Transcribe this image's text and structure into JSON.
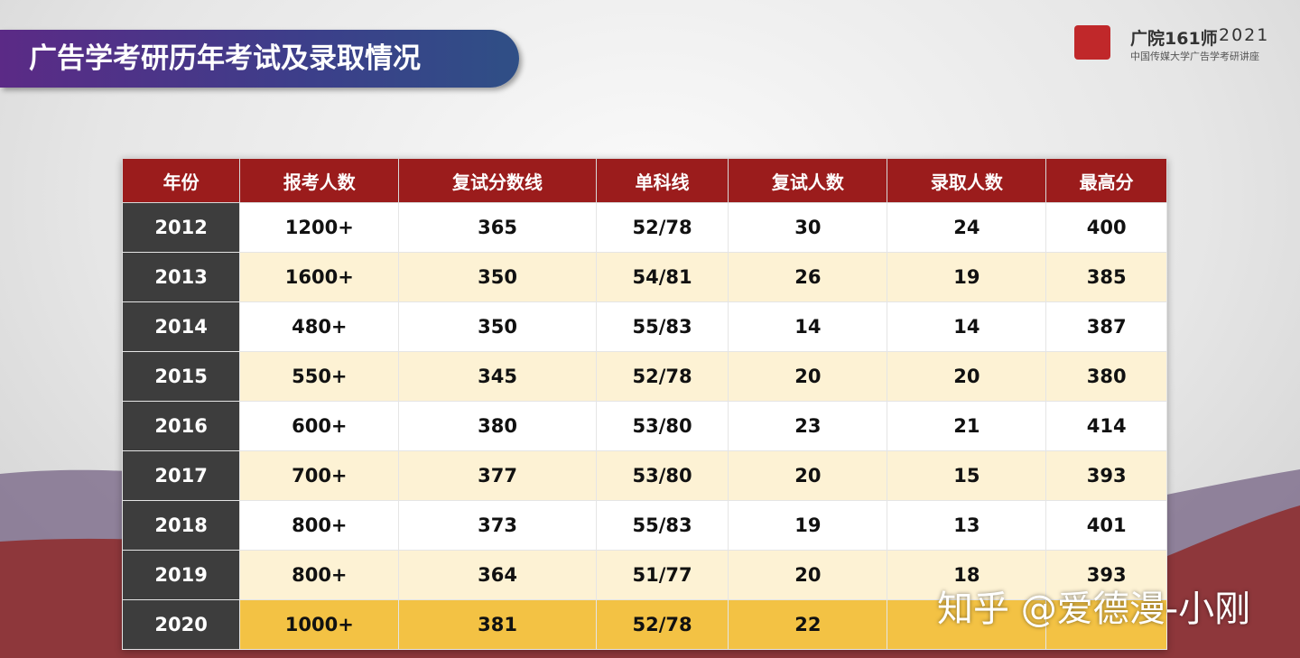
{
  "header": {
    "title": "广告学考研历年考试及录取情况",
    "brand": "广院161师",
    "year": "2021",
    "subtitle": "中国传媒大学广告学考研讲座"
  },
  "table": {
    "headers": [
      "年份",
      "报考人数",
      "复试分数线",
      "单科线",
      "复试人数",
      "录取人数",
      "最高分"
    ],
    "rows": [
      [
        "2012",
        "1200+",
        "365",
        "52/78",
        "30",
        "24",
        "400"
      ],
      [
        "2013",
        "1600+",
        "350",
        "54/81",
        "26",
        "19",
        "385"
      ],
      [
        "2014",
        "480+",
        "350",
        "55/83",
        "14",
        "14",
        "387"
      ],
      [
        "2015",
        "550+",
        "345",
        "52/78",
        "20",
        "20",
        "380"
      ],
      [
        "2016",
        "600+",
        "380",
        "53/80",
        "23",
        "21",
        "414"
      ],
      [
        "2017",
        "700+",
        "377",
        "53/80",
        "20",
        "15",
        "393"
      ],
      [
        "2018",
        "800+",
        "373",
        "55/83",
        "19",
        "13",
        "401"
      ],
      [
        "2019",
        "800+",
        "364",
        "51/77",
        "20",
        "18",
        "393"
      ],
      [
        "2020",
        "1000+",
        "381",
        "52/78",
        "22",
        null,
        null
      ]
    ]
  },
  "watermark": "知乎 @爱德漫-小刚"
}
